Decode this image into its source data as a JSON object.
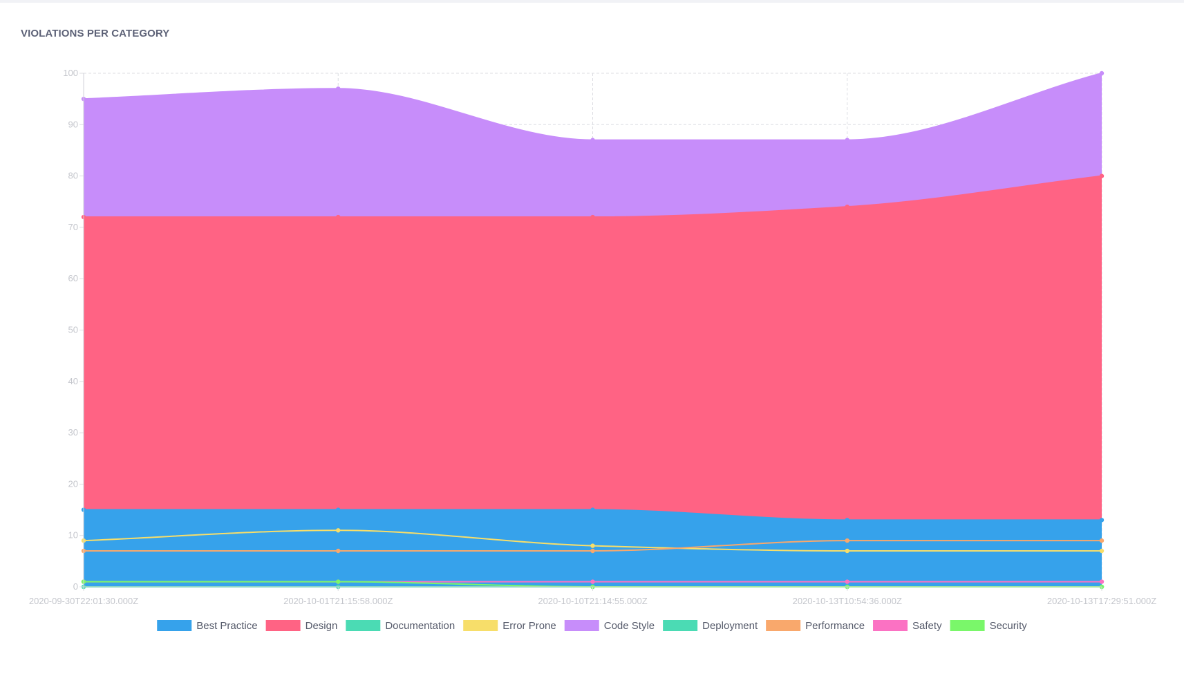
{
  "title": "VIOLATIONS PER CATEGORY",
  "chart_data": {
    "type": "area",
    "x": [
      "2020-09-30T22:01:30.000Z",
      "2020-10-01T21:15:58.000Z",
      "2020-10-10T21:14:55.000Z",
      "2020-10-13T10:54:36.000Z",
      "2020-10-13T17:29:51.000Z"
    ],
    "ylim": [
      0,
      100
    ],
    "yticks": [
      0,
      10,
      20,
      30,
      40,
      50,
      60,
      70,
      80,
      90,
      100
    ],
    "grid": true,
    "legend_position": "bottom",
    "series": [
      {
        "name": "Best Practice",
        "color": "#36a2eb",
        "fill": true,
        "values": [
          15,
          15,
          15,
          13,
          13
        ]
      },
      {
        "name": "Design",
        "color": "#ff6384",
        "fill": true,
        "values": [
          72,
          72,
          72,
          74,
          80
        ]
      },
      {
        "name": "Documentation",
        "color": "#4bdbb4",
        "fill": false,
        "values": [
          0,
          0,
          0,
          0,
          0
        ]
      },
      {
        "name": "Error Prone",
        "color": "#f7de6a",
        "fill": false,
        "values": [
          9,
          11,
          8,
          7,
          7
        ]
      },
      {
        "name": "Code Style",
        "color": "#c78dfa",
        "fill": true,
        "values": [
          95,
          97,
          87,
          87,
          100
        ]
      },
      {
        "name": "Deployment",
        "color": "#4bdbb4",
        "fill": false,
        "values": [
          0,
          0,
          0,
          0,
          0
        ]
      },
      {
        "name": "Performance",
        "color": "#f9a86c",
        "fill": false,
        "values": [
          7,
          7,
          7,
          9,
          9
        ]
      },
      {
        "name": "Safety",
        "color": "#fb72c3",
        "fill": false,
        "values": [
          1,
          1,
          1,
          1,
          1
        ]
      },
      {
        "name": "Security",
        "color": "#7af76a",
        "fill": false,
        "values": [
          1,
          1,
          0,
          0,
          0
        ]
      }
    ]
  }
}
